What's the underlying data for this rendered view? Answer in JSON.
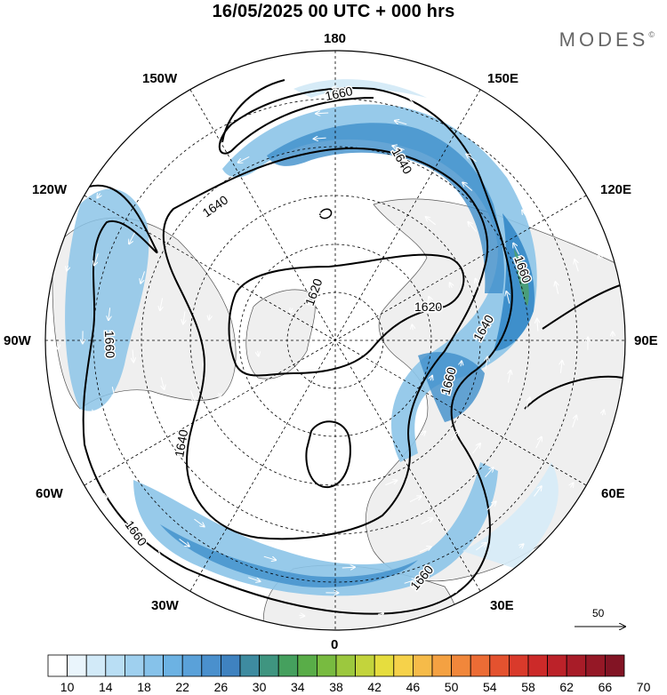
{
  "header": {
    "title": "16/05/2025  00 UTC  + 000 hrs",
    "brand": "MODES",
    "brand_mark": "©"
  },
  "map": {
    "projection": "north-polar-stereographic",
    "longitude_labels": {
      "top": "180",
      "top_left": "150W",
      "top_right": "150E",
      "upper_left": "120W",
      "upper_right": "120E",
      "left": "90W",
      "right": "90E",
      "lower_left": "60W",
      "lower_right": "60E",
      "bottom_left": "30W",
      "bottom_right": "30E",
      "bottom": "0"
    },
    "contour_labels": [
      "1660",
      "1640",
      "1640",
      "1620",
      "1620",
      "1640",
      "1660",
      "1660",
      "1640",
      "1660",
      "1660"
    ],
    "colors": {
      "land": "#efefef",
      "ocean": "#ffffff",
      "fill_light": "#d6ebf7",
      "fill_mid": "#8cc4e8",
      "fill_dark": "#3e8fcb",
      "fill_green": "#4a9e7a"
    }
  },
  "wind_scale": {
    "value": "50"
  },
  "colorbar": {
    "labels": [
      "10",
      "14",
      "18",
      "22",
      "26",
      "30",
      "34",
      "38",
      "42",
      "46",
      "50",
      "54",
      "58",
      "62",
      "66",
      "70"
    ],
    "colors": [
      "#ffffff",
      "#eaf5fc",
      "#d2eaf8",
      "#b9def4",
      "#9fd0ef",
      "#86c2ea",
      "#6cb2e3",
      "#5aa1d9",
      "#4a90cd",
      "#3f82c0",
      "#3e8ba0",
      "#3f9580",
      "#45a05e",
      "#59ad48",
      "#78bb40",
      "#9cc83e",
      "#c3d43c",
      "#e6dd3e",
      "#f6d24a",
      "#f6bb49",
      "#f4a142",
      "#f1873b",
      "#ec6c35",
      "#e4522f",
      "#d93a2b",
      "#cc2a29",
      "#bc2229",
      "#a81c28",
      "#951826",
      "#821424"
    ]
  }
}
